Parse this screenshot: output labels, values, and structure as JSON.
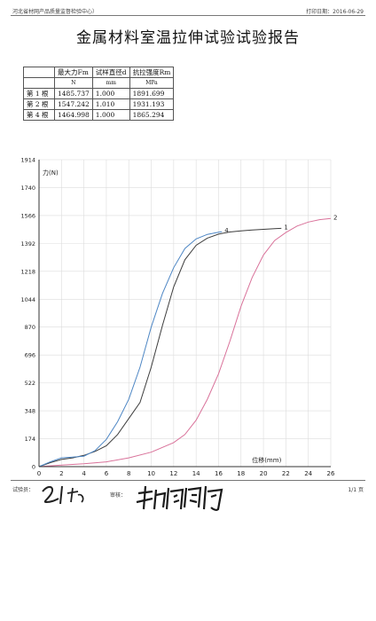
{
  "header": {
    "organization": "河北省材网产品质量监督检验中心）",
    "print_date_label": "打印日期：",
    "print_date": "2016-06-29"
  },
  "title": "金属材料室温拉伸试验试验报告",
  "table": {
    "headers": [
      "",
      "最大力Fm",
      "试样直径d",
      "抗拉强度Rm"
    ],
    "units": [
      "",
      "N",
      "mm",
      "MPa"
    ],
    "rows": [
      [
        "第 1 根",
        "1485.737",
        "1.000",
        "1891.699"
      ],
      [
        "第 2 根",
        "1547.242",
        "1.010",
        "1931.193"
      ],
      [
        "第 4 根",
        "1464.998",
        "1.000",
        "1865.294"
      ]
    ]
  },
  "chart_data": {
    "type": "line",
    "xlabel": "位移(mm)",
    "ylabel": "力(N)",
    "xlim": [
      0,
      26
    ],
    "ylim": [
      0,
      1914
    ],
    "x_ticks": [
      "0",
      "2",
      "4",
      "6",
      "8",
      "10",
      "12",
      "14",
      "16",
      "18",
      "20",
      "22",
      "24",
      "26"
    ],
    "y_ticks": [
      "0",
      "174",
      "348",
      "522",
      "696",
      "870",
      "1044",
      "1218",
      "1392",
      "1566",
      "1740",
      "1914"
    ],
    "grid": true,
    "series": [
      {
        "name": "1",
        "color": "#3d3d3d",
        "points": [
          [
            0,
            0
          ],
          [
            1,
            25
          ],
          [
            2,
            45
          ],
          [
            3,
            55
          ],
          [
            4,
            70
          ],
          [
            5,
            95
          ],
          [
            6,
            130
          ],
          [
            7,
            200
          ],
          [
            8,
            300
          ],
          [
            9,
            400
          ],
          [
            10,
            620
          ],
          [
            11,
            880
          ],
          [
            12,
            1120
          ],
          [
            13,
            1290
          ],
          [
            14,
            1380
          ],
          [
            15,
            1425
          ],
          [
            16,
            1450
          ],
          [
            17,
            1463
          ],
          [
            18,
            1470
          ],
          [
            19,
            1476
          ],
          [
            20,
            1480
          ],
          [
            21,
            1484
          ],
          [
            21.6,
            1486
          ]
        ]
      },
      {
        "name": "2",
        "color": "#d9729a",
        "points": [
          [
            0,
            0
          ],
          [
            2,
            10
          ],
          [
            4,
            18
          ],
          [
            6,
            30
          ],
          [
            8,
            55
          ],
          [
            10,
            90
          ],
          [
            12,
            150
          ],
          [
            13,
            200
          ],
          [
            14,
            290
          ],
          [
            15,
            420
          ],
          [
            16,
            580
          ],
          [
            17,
            780
          ],
          [
            18,
            1000
          ],
          [
            19,
            1180
          ],
          [
            20,
            1320
          ],
          [
            21,
            1410
          ],
          [
            22,
            1460
          ],
          [
            23,
            1500
          ],
          [
            24,
            1525
          ],
          [
            25,
            1540
          ],
          [
            26,
            1547
          ]
        ]
      },
      {
        "name": "4",
        "color": "#4d86c4",
        "points": [
          [
            0,
            0
          ],
          [
            1,
            30
          ],
          [
            2,
            55
          ],
          [
            3,
            60
          ],
          [
            4,
            65
          ],
          [
            5,
            100
          ],
          [
            6,
            170
          ],
          [
            7,
            280
          ],
          [
            8,
            420
          ],
          [
            9,
            620
          ],
          [
            10,
            870
          ],
          [
            11,
            1080
          ],
          [
            12,
            1240
          ],
          [
            13,
            1360
          ],
          [
            14,
            1420
          ],
          [
            15,
            1448
          ],
          [
            16,
            1462
          ],
          [
            16.3,
            1465
          ]
        ]
      }
    ]
  },
  "footer": {
    "tester_label": "试验员：",
    "reviewer_label": "审核：",
    "page": "1/1 页"
  }
}
